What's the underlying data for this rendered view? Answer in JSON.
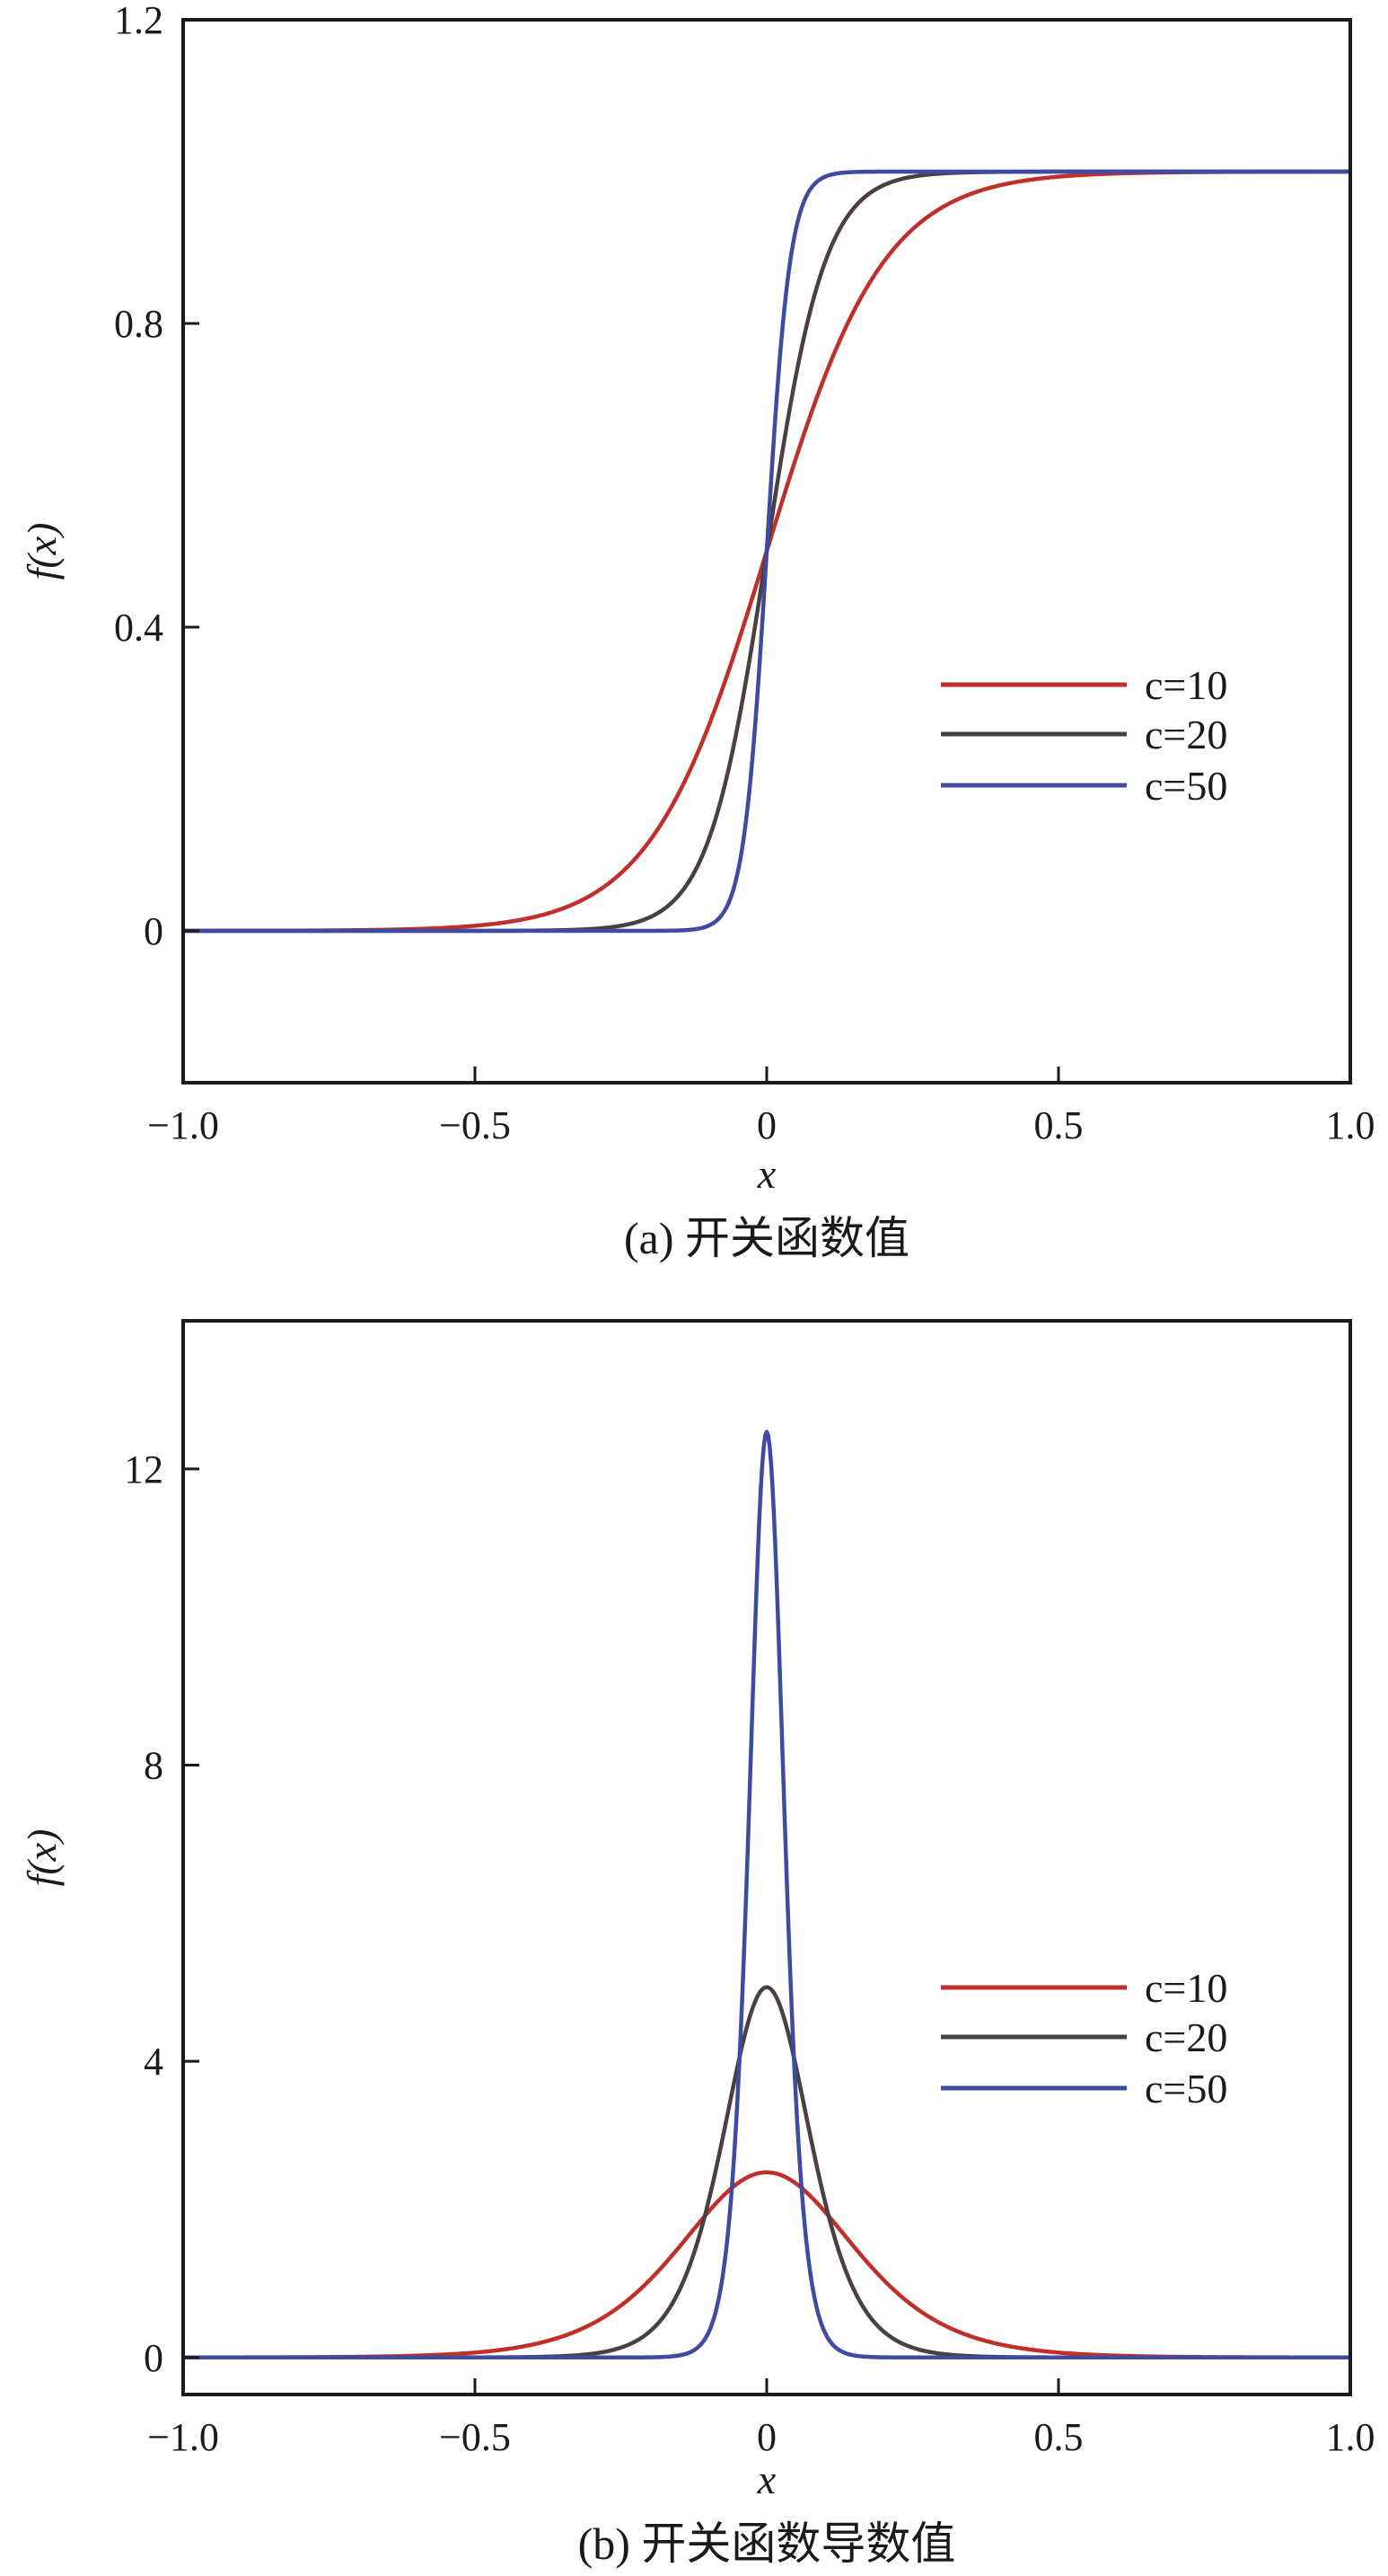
{
  "chart_data": [
    {
      "type": "line",
      "caption": "(a) 开关函数值",
      "xlabel": "x",
      "ylabel": "f(x)",
      "xlim": [
        -1.0,
        1.0
      ],
      "ylim": [
        -0.2,
        1.2
      ],
      "xticks": [
        -1.0,
        -0.5,
        0,
        0.5,
        1.0
      ],
      "xtick_labels": [
        "−1.0",
        "−0.5",
        "0",
        "0.5",
        "1.0"
      ],
      "yticks": [
        0,
        0.4,
        0.8,
        1.2
      ],
      "ytick_labels": [
        "0",
        "0.4",
        "0.8",
        "1.2"
      ],
      "function": "f(x) = 1 / (1 + exp(-c·x))",
      "legend_position": "right",
      "series": [
        {
          "name": "c=10",
          "c": 10,
          "color": "#c0302b"
        },
        {
          "name": "c=20",
          "c": 20,
          "color": "#4a4040"
        },
        {
          "name": "c=50",
          "c": 50,
          "color": "#3f4aa0"
        }
      ]
    },
    {
      "type": "line",
      "caption": "(b) 开关函数导数值",
      "xlabel": "x",
      "ylabel": "f(x)",
      "xlim": [
        -1.0,
        1.0
      ],
      "ylim": [
        -0.5,
        14
      ],
      "xticks": [
        -1.0,
        -0.5,
        0,
        0.5,
        1.0
      ],
      "xtick_labels": [
        "−1.0",
        "−0.5",
        "0",
        "0.5",
        "1.0"
      ],
      "yticks": [
        0,
        4,
        8,
        12
      ],
      "ytick_labels": [
        "0",
        "4",
        "8",
        "12"
      ],
      "function": "f'(x) = c·exp(-c·x) / (1 + exp(-c·x))^2",
      "legend_position": "right",
      "series": [
        {
          "name": "c=10",
          "c": 10,
          "color": "#c0302b"
        },
        {
          "name": "c=20",
          "c": 20,
          "color": "#4a4040"
        },
        {
          "name": "c=50",
          "c": 50,
          "color": "#3f4aa0"
        }
      ]
    }
  ]
}
